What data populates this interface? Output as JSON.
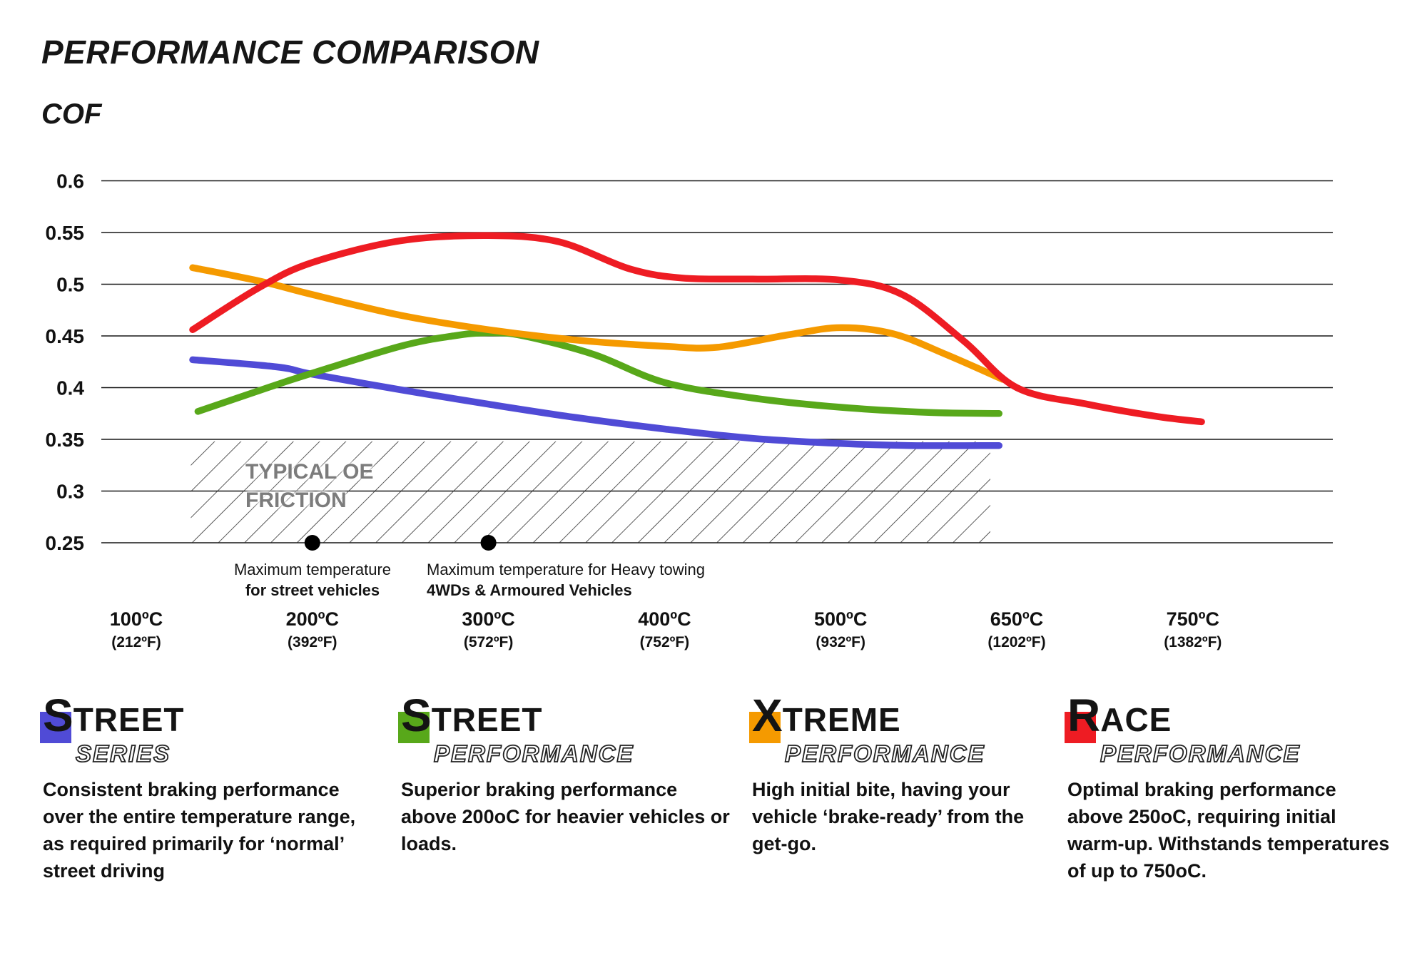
{
  "page": {
    "title": "PERFORMANCE COMPARISON",
    "y_axis_title": "COF"
  },
  "chart_data": {
    "type": "line",
    "title": "PERFORMANCE COMPARISON",
    "ylabel": "COF",
    "ylim": [
      0.25,
      0.6
    ],
    "yticks": [
      0.6,
      0.55,
      0.5,
      0.45,
      0.4,
      0.35,
      0.3,
      0.25
    ],
    "grid": "horizontal",
    "legend_position": "bottom",
    "x_categories": [
      {
        "label": "100ºC",
        "sub": "(212ºF)"
      },
      {
        "label": "200ºC",
        "sub": "(392ºF)"
      },
      {
        "label": "300ºC",
        "sub": "(572ºF)"
      },
      {
        "label": "400ºC",
        "sub": "(752ºF)"
      },
      {
        "label": "500ºC",
        "sub": "(932ºF)"
      },
      {
        "label": "650ºC",
        "sub": "(1202ºF)"
      },
      {
        "label": "750ºC",
        "sub": "(1382ºF)"
      }
    ],
    "series": [
      {
        "key": "street-series",
        "name": "Street Series",
        "color": "#504bd6",
        "x": [
          0.32,
          0.8,
          1.0,
          1.5,
          2.0,
          2.5,
          3.0,
          3.5,
          4.0,
          4.4,
          4.9
        ],
        "values": [
          0.427,
          0.42,
          0.413,
          0.398,
          0.384,
          0.371,
          0.36,
          0.351,
          0.346,
          0.344,
          0.344
        ]
      },
      {
        "key": "street-performance",
        "name": "Street Performance",
        "color": "#58a81a",
        "x": [
          0.35,
          0.8,
          1.0,
          1.5,
          1.8,
          2.0,
          2.2,
          2.6,
          3.0,
          3.5,
          4.0,
          4.5,
          4.9
        ],
        "values": [
          0.377,
          0.403,
          0.414,
          0.44,
          0.45,
          0.453,
          0.45,
          0.432,
          0.405,
          0.39,
          0.381,
          0.376,
          0.375
        ]
      },
      {
        "key": "xtreme-performance",
        "name": "Xtreme Performance",
        "color": "#f59a00",
        "x": [
          0.32,
          0.7,
          1.0,
          1.5,
          2.0,
          2.5,
          3.0,
          3.3,
          3.7,
          4.0,
          4.3,
          4.6,
          4.92
        ],
        "values": [
          0.516,
          0.503,
          0.49,
          0.47,
          0.456,
          0.446,
          0.44,
          0.439,
          0.451,
          0.458,
          0.452,
          0.432,
          0.408
        ]
      },
      {
        "key": "race-performance",
        "name": "Race Performance",
        "color": "#ee1c23",
        "x": [
          0.32,
          0.7,
          1.0,
          1.5,
          2.0,
          2.4,
          2.8,
          3.1,
          3.5,
          4.0,
          4.35,
          4.7,
          5.0,
          5.4,
          5.8,
          6.05
        ],
        "values": [
          0.456,
          0.497,
          0.521,
          0.542,
          0.547,
          0.541,
          0.515,
          0.506,
          0.505,
          0.504,
          0.49,
          0.445,
          0.4,
          0.384,
          0.372,
          0.367
        ]
      }
    ],
    "oe_zone": {
      "label_line1": "TYPICAL OE",
      "label_line2": "FRICTION",
      "y_top": 0.348,
      "y_bottom": 0.25,
      "x_from": 0.31,
      "x_to": 4.85
    },
    "annotations": [
      {
        "x": 1,
        "marker": "dot",
        "line1": "Maximum temperature",
        "line2": "for street vehicles"
      },
      {
        "x": 2,
        "marker": "dot",
        "line1": "Maximum temperature for Heavy towing",
        "line2": "4WDs & Armoured Vehicles"
      }
    ]
  },
  "legend": {
    "items": [
      {
        "name": "street-series",
        "first": "S",
        "rest": "TREET",
        "sub": "SERIES",
        "color": "#504bd6",
        "desc": "Consistent braking performance over the entire temperature range, as required primarily for ‘normal’ street driving"
      },
      {
        "name": "street-performance",
        "first": "S",
        "rest": "TREET",
        "sub": "PERFORMANCE",
        "color": "#58a81a",
        "desc": "Superior braking performance above 200oC for heavier vehicles or loads."
      },
      {
        "name": "xtreme-performance",
        "first": "X",
        "rest": "TREME",
        "sub": "PERFORMANCE",
        "color": "#f59a00",
        "desc": "High initial bite, having your vehicle ‘brake-ready’ from the get-go."
      },
      {
        "name": "race-performance",
        "first": "R",
        "rest": "ACE",
        "sub": "PERFORMANCE",
        "color": "#ee1c23",
        "desc": "Optimal braking performance above 250oC, requiring initial warm-up. Withstands temperatures of up to 750oC."
      }
    ]
  }
}
